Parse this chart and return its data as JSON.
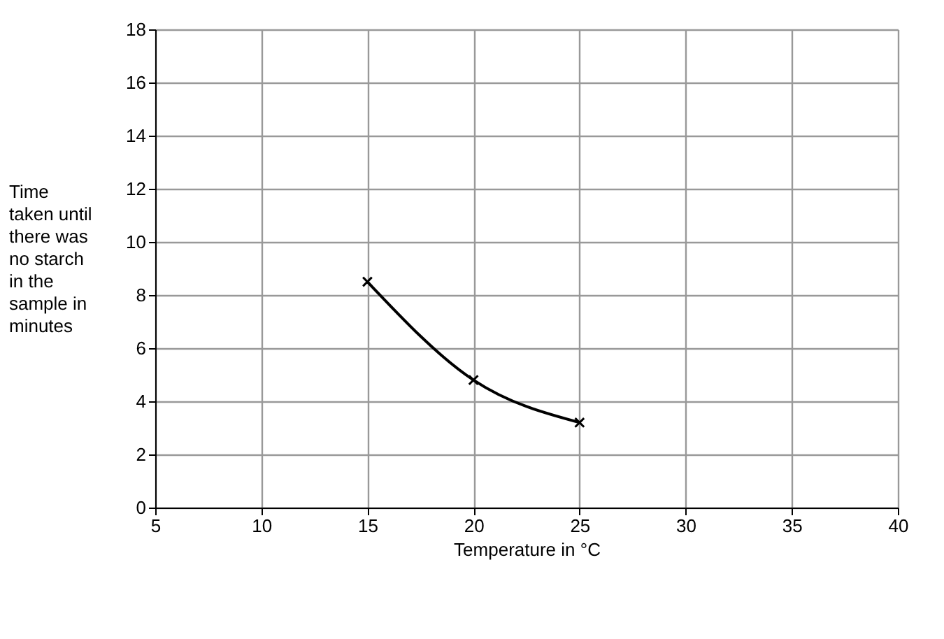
{
  "chart_data": {
    "type": "line",
    "xlabel": "Temperature in °C",
    "ylabel": "Time\ntaken until\nthere was\nno starch\nin the\nsample in\nminutes",
    "x": [
      15,
      20,
      25
    ],
    "values": [
      8.5,
      4.8,
      3.2
    ],
    "color": "#000000",
    "marker": "cross",
    "xlim": [
      5,
      40
    ],
    "xticks": [
      5,
      10,
      15,
      20,
      25,
      30,
      35,
      40
    ],
    "ylim": [
      0,
      18
    ],
    "yticks": [
      0,
      2,
      4,
      6,
      8,
      10,
      12,
      14,
      16,
      18
    ],
    "grid": true
  }
}
